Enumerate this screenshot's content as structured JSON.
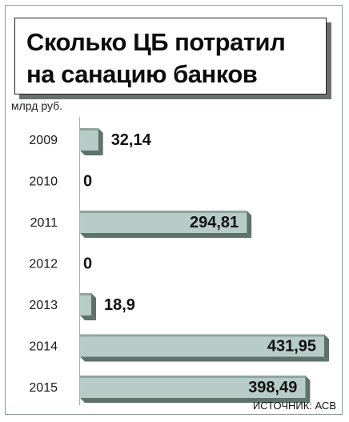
{
  "title_line1": "Сколько ЦБ потратил",
  "title_line2": "на санацию банков",
  "unit": "млрд руб.",
  "source": "ИСТОЧНИК: АСВ",
  "colors": {
    "bar": "#b7ccc6",
    "bar_side": "#5e7269",
    "bar_top": "#8fa69f"
  },
  "chart_data": {
    "type": "bar",
    "orientation": "horizontal",
    "categories": [
      "2009",
      "2010",
      "2011",
      "2012",
      "2013",
      "2014",
      "2015"
    ],
    "values": [
      32.14,
      0,
      294.81,
      0,
      18.9,
      431.95,
      398.49
    ],
    "value_labels": [
      "32,14",
      "0",
      "294,81",
      "0",
      "18,9",
      "431,95",
      "398,49"
    ],
    "title": "Сколько ЦБ потратил на санацию банков",
    "ylabel": "млрд руб.",
    "xlim": [
      0,
      440
    ]
  }
}
